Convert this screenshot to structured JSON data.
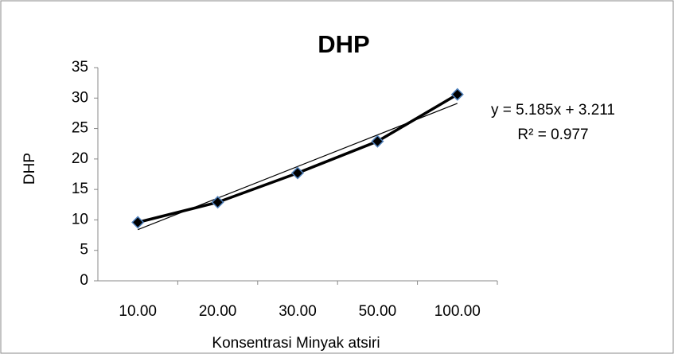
{
  "chart_data": {
    "type": "line",
    "title": "DHP",
    "x_label": "Konsentrasi Minyak atsiri",
    "y_label": "DHP",
    "categories": [
      "10.00",
      "20.00",
      "30.00",
      "50.00",
      "100.00"
    ],
    "series": [
      {
        "name": "DHP",
        "color": "#000000",
        "values": [
          9.6,
          12.9,
          17.7,
          22.9,
          30.6
        ]
      }
    ],
    "trendline": {
      "slope": 5.185,
      "intercept": 3.211,
      "equation": "y = 5.185x + 3.211",
      "r_squared": "R² = 0.977"
    },
    "ylim": [
      0,
      35
    ],
    "yticks": [
      0,
      5,
      10,
      15,
      20,
      25,
      30,
      35
    ],
    "grid": false
  }
}
